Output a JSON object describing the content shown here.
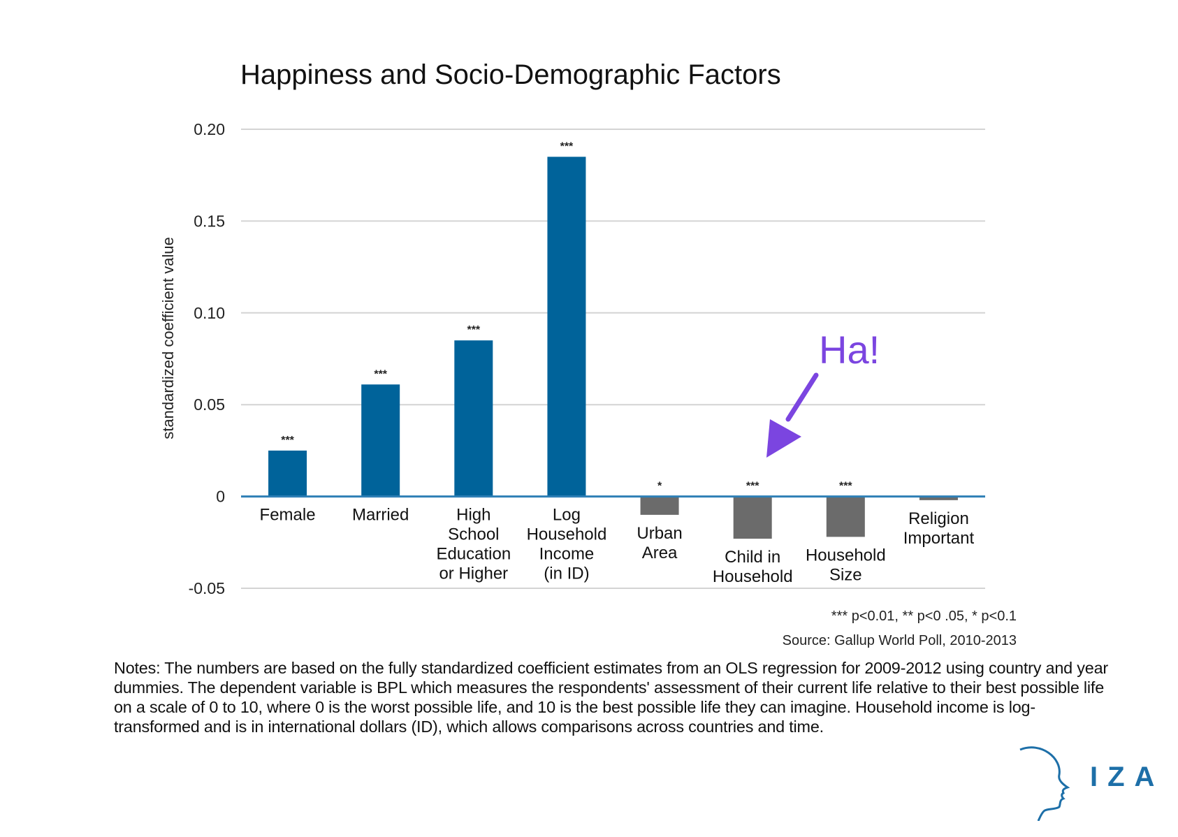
{
  "chart_data": {
    "type": "bar",
    "title": "Happiness and Socio-Demographic Factors",
    "ylabel": "standardized coefficient value",
    "xlabel": "",
    "ylim": [
      -0.05,
      0.2
    ],
    "yticks": [
      0.2,
      0.15,
      0.1,
      0.05,
      0,
      -0.05
    ],
    "ytick_labels": [
      "0.20",
      "0.15",
      "0.10",
      "0.05",
      "0",
      "-0.05"
    ],
    "grid": true,
    "categories": [
      [
        "Female"
      ],
      [
        "Married"
      ],
      [
        "High",
        "School",
        "Education",
        "or Higher"
      ],
      [
        "Log",
        "Household",
        "Income",
        "(in ID)"
      ],
      [
        "Urban",
        "Area"
      ],
      [
        "Child in",
        "Household"
      ],
      [
        "Household",
        "Size"
      ],
      [
        "Religion",
        "Important"
      ]
    ],
    "values": [
      0.025,
      0.061,
      0.085,
      0.185,
      -0.01,
      -0.023,
      -0.022,
      -0.002
    ],
    "significance": [
      "***",
      "***",
      "***",
      "***",
      "*",
      "***",
      "***",
      ""
    ],
    "colors": {
      "positive": "#00639a",
      "negative": "#6b6b6b",
      "axis": "#2e7fb5",
      "grid": "#d4d4d4"
    },
    "annotation": {
      "text": "Ha!",
      "points_to": "Child in Household",
      "color": "#7b45e0"
    },
    "significance_legend": "*** p<0.01, ** p<0 .05, * p<0.1",
    "source": "Source: Gallup World Poll, 2010-2013"
  },
  "notes": "Notes: The numbers are based on the fully standardized coefficient estimates from an OLS regression for 2009-2012 using country and year dummies. The dependent variable is BPL which measures the respondents' assessment of their current life relative to their best possible life on a scale of 0 to 10, where 0 is the worst possible life, and 10 is the best possible life they can imagine. Household income is log-transformed and is in international dollars (ID), which allows comparisons across countries and time.",
  "logo": {
    "text": "IZA",
    "icon": "head-profile-icon"
  }
}
